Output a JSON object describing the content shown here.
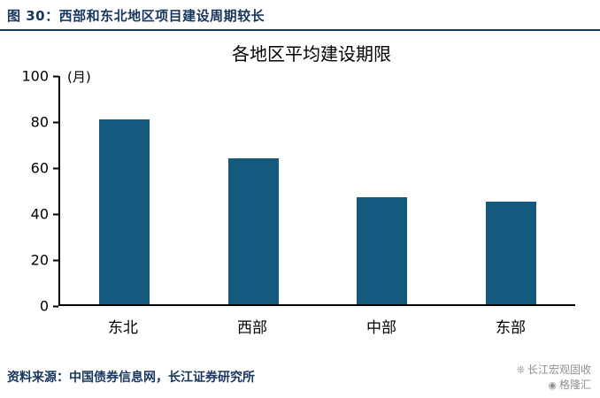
{
  "figure": {
    "title": "图 30：西部和东北地区项目建设周期较长"
  },
  "footer": {
    "source": "资料来源：中国债券信息网，长江证券研究所"
  },
  "watermark": {
    "line1": "长江宏观固收",
    "line2": "格隆汇"
  },
  "icons": {
    "wechat_icon": "❊",
    "gelonghui_icon": "◉"
  },
  "colors": {
    "bar": "#16597F",
    "header": "#17365D",
    "axis": "#000000",
    "watermark": "#8f8f8f"
  },
  "chart_data": {
    "type": "bar",
    "title": "各地区平均建设期限",
    "unit_label": "(月)",
    "categories": [
      "东北",
      "西部",
      "中部",
      "东部"
    ],
    "values": [
      81,
      64,
      47,
      45
    ],
    "xlabel": "",
    "ylabel": "",
    "ylim": [
      0,
      100
    ],
    "yticks": [
      0,
      20,
      40,
      60,
      80,
      100
    ],
    "grid": false,
    "legend": false
  }
}
